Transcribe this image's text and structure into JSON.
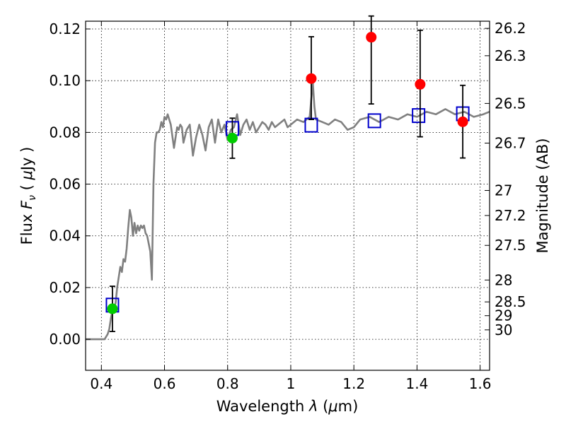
{
  "chart_data": {
    "type": "scatter",
    "xlabel": "Wavelength  λ (μm)",
    "ylabel": "Flux  F_ν  ( μJy )",
    "ylabel_parts": {
      "pre": "Flux ",
      "F": "F",
      "nu": "ν",
      "open": "  ( ",
      "mu": "μ",
      "post": "Jy )"
    },
    "xlabel_parts": {
      "pre": "Wavelength  ",
      "lambda": "λ",
      "open": " (",
      "mu": "μ",
      "post": "m)"
    },
    "y2label": "Magnitude (AB)",
    "xlim": [
      0.35,
      1.63
    ],
    "ylim": [
      -0.012,
      0.123
    ],
    "grid": true,
    "x_ticks": [
      0.4,
      0.6,
      0.8,
      1.0,
      1.2,
      1.4,
      1.6
    ],
    "x_tick_labels": [
      "0.4",
      "0.6",
      "0.8",
      "1",
      "1.2",
      "1.4",
      "1.6"
    ],
    "y_ticks": [
      0.0,
      0.02,
      0.04,
      0.06,
      0.08,
      0.1,
      0.12
    ],
    "y_tick_labels": [
      "0.00",
      "0.02",
      "0.04",
      "0.06",
      "0.08",
      "0.10",
      "0.12"
    ],
    "mag_ticks": [
      26.2,
      26.3,
      26.5,
      26.7,
      27,
      27.2,
      27.5,
      28,
      28.5,
      29,
      30
    ],
    "mag_tick_labels": [
      "26.2",
      "26.3",
      "26.5",
      "26.7",
      "27",
      "27.2",
      "27.5",
      "28",
      "28.5",
      "29",
      "30"
    ],
    "colors": {
      "sed_model": "#808080",
      "model_photometry": "#0000cc",
      "detection": "#00cc00",
      "red_point": "#ff0000",
      "errorbar": "#000000"
    },
    "series": [
      {
        "kind": "line",
        "x": [
          0.35,
          0.38,
          0.41,
          0.42,
          0.425,
          0.43,
          0.435,
          0.44,
          0.445,
          0.45,
          0.455,
          0.46,
          0.465,
          0.47,
          0.475,
          0.48,
          0.485,
          0.49,
          0.495,
          0.5,
          0.505,
          0.51,
          0.515,
          0.52,
          0.525,
          0.53,
          0.535,
          0.54,
          0.545,
          0.55,
          0.555,
          0.56,
          0.565,
          0.57,
          0.575,
          0.58,
          0.585,
          0.59,
          0.595,
          0.6,
          0.605,
          0.61,
          0.62,
          0.63,
          0.64,
          0.645,
          0.65,
          0.655,
          0.66,
          0.67,
          0.68,
          0.69,
          0.7,
          0.71,
          0.72,
          0.73,
          0.74,
          0.75,
          0.76,
          0.77,
          0.78,
          0.79,
          0.8,
          0.81,
          0.82,
          0.83,
          0.84,
          0.85,
          0.86,
          0.87,
          0.88,
          0.89,
          0.9,
          0.91,
          0.92,
          0.93,
          0.94,
          0.95,
          0.96,
          0.97,
          0.98,
          0.99,
          1.0,
          1.02,
          1.04,
          1.06,
          1.065,
          1.07,
          1.075,
          1.08,
          1.1,
          1.12,
          1.14,
          1.16,
          1.18,
          1.2,
          1.22,
          1.25,
          1.28,
          1.31,
          1.34,
          1.37,
          1.4,
          1.43,
          1.46,
          1.49,
          1.52,
          1.55,
          1.58,
          1.61,
          1.63
        ],
        "y": [
          0.0,
          0.0,
          0.0,
          0.002,
          0.004,
          0.008,
          0.011,
          0.012,
          0.014,
          0.02,
          0.024,
          0.028,
          0.026,
          0.031,
          0.03,
          0.035,
          0.043,
          0.05,
          0.047,
          0.04,
          0.045,
          0.041,
          0.044,
          0.042,
          0.044,
          0.043,
          0.044,
          0.041,
          0.04,
          0.037,
          0.034,
          0.023,
          0.06,
          0.076,
          0.08,
          0.08,
          0.081,
          0.084,
          0.082,
          0.086,
          0.085,
          0.087,
          0.083,
          0.074,
          0.082,
          0.081,
          0.083,
          0.082,
          0.076,
          0.081,
          0.083,
          0.071,
          0.078,
          0.083,
          0.079,
          0.073,
          0.082,
          0.085,
          0.076,
          0.085,
          0.08,
          0.083,
          0.077,
          0.081,
          0.082,
          0.087,
          0.079,
          0.083,
          0.085,
          0.081,
          0.084,
          0.08,
          0.082,
          0.084,
          0.083,
          0.081,
          0.084,
          0.082,
          0.083,
          0.084,
          0.085,
          0.082,
          0.083,
          0.085,
          0.084,
          0.086,
          0.093,
          0.099,
          0.09,
          0.085,
          0.084,
          0.083,
          0.085,
          0.084,
          0.081,
          0.082,
          0.085,
          0.086,
          0.084,
          0.086,
          0.085,
          0.087,
          0.086,
          0.088,
          0.087,
          0.089,
          0.087,
          0.088,
          0.086,
          0.087,
          0.088
        ]
      },
      {
        "kind": "open-square",
        "x": [
          0.435,
          0.815,
          1.065,
          1.265,
          1.405,
          1.545
        ],
        "y": [
          0.0132,
          0.0815,
          0.0828,
          0.0845,
          0.0865,
          0.0872
        ]
      },
      {
        "kind": "errorbar-points",
        "x": [
          0.435,
          0.815,
          1.065,
          1.255,
          1.41,
          1.545
        ],
        "y": [
          0.0118,
          0.0778,
          0.1008,
          0.1168,
          0.0986,
          0.0841
        ],
        "err_low": [
          0.0088,
          0.0078,
          0.0158,
          0.0258,
          0.0203,
          0.014
        ],
        "err_high": [
          0.0087,
          0.0077,
          0.0162,
          0.0082,
          0.0209,
          0.0141
        ],
        "point_color": [
          "detection",
          "detection",
          "red_point",
          "red_point",
          "red_point",
          "red_point"
        ]
      }
    ]
  }
}
